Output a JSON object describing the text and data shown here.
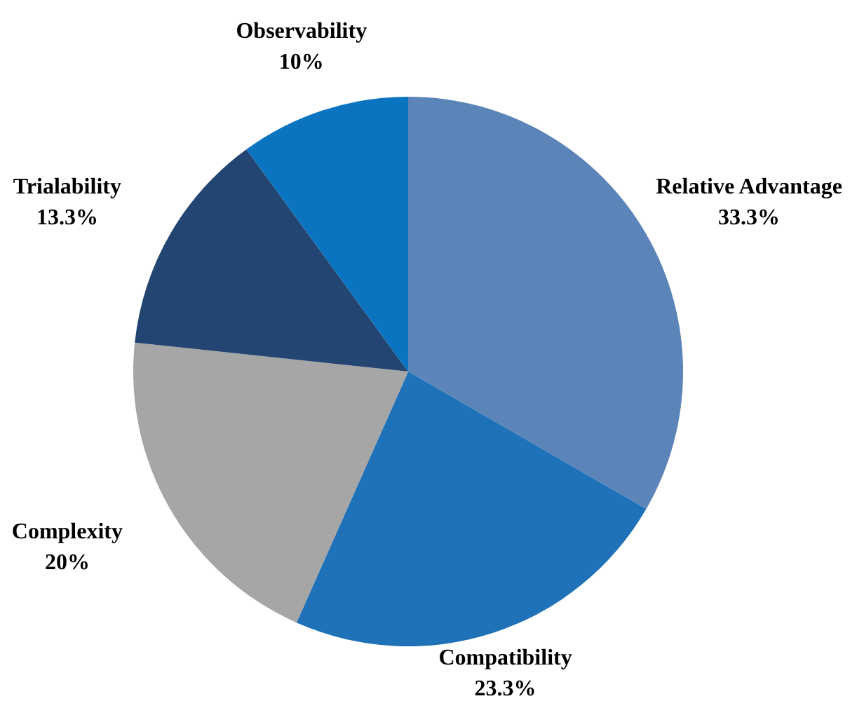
{
  "chart_data": {
    "type": "pie",
    "categories": [
      "Relative Advantage",
      "Compatibility",
      "Complexity",
      "Trialability",
      "Observability"
    ],
    "values": [
      33.3,
      23.3,
      20,
      13.3,
      10
    ],
    "value_labels": [
      "33.3%",
      "23.3%",
      "20%",
      "13.3%",
      "10%"
    ],
    "colors": [
      "#5b84b8",
      "#1f72b8",
      "#a6a6a6",
      "#234572",
      "#0a74c0"
    ],
    "legend": false
  }
}
